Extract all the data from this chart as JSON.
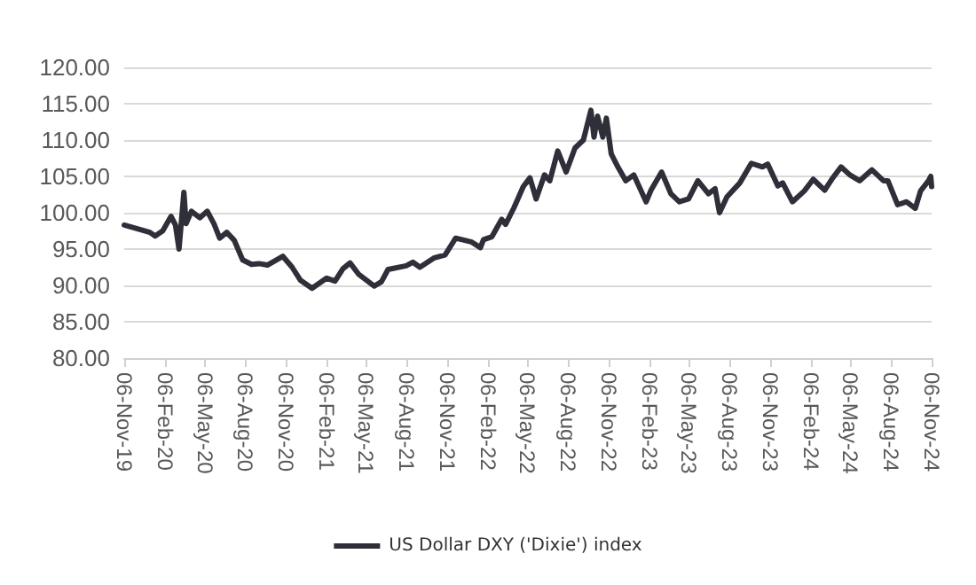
{
  "chart_data": {
    "type": "line",
    "x": [
      "2019-11-06",
      "2019-12-06",
      "2020-01-03",
      "2020-01-15",
      "2020-02-01",
      "2020-02-20",
      "2020-03-01",
      "2020-03-09",
      "2020-03-20",
      "2020-03-25",
      "2020-04-06",
      "2020-04-25",
      "2020-05-12",
      "2020-05-27",
      "2020-06-09",
      "2020-06-25",
      "2020-07-12",
      "2020-07-31",
      "2020-08-20",
      "2020-09-06",
      "2020-09-25",
      "2020-10-30",
      "2020-11-20",
      "2020-12-09",
      "2021-01-04",
      "2021-02-06",
      "2021-02-25",
      "2021-03-15",
      "2021-03-31",
      "2021-04-20",
      "2021-05-25",
      "2021-06-10",
      "2021-06-25",
      "2021-08-05",
      "2021-08-20",
      "2021-09-05",
      "2021-10-08",
      "2021-11-01",
      "2021-11-25",
      "2021-12-30",
      "2022-01-20",
      "2022-01-27",
      "2022-02-15",
      "2022-03-09",
      "2022-03-18",
      "2022-04-06",
      "2022-04-27",
      "2022-05-12",
      "2022-05-26",
      "2022-06-14",
      "2022-06-26",
      "2022-07-14",
      "2022-08-02",
      "2022-08-22",
      "2022-09-10",
      "2022-09-27",
      "2022-10-04",
      "2022-10-12",
      "2022-10-24",
      "2022-11-01",
      "2022-11-12",
      "2022-11-27",
      "2022-12-15",
      "2023-01-02",
      "2023-01-30",
      "2023-02-10",
      "2023-03-06",
      "2023-03-27",
      "2023-04-15",
      "2023-05-06",
      "2023-05-27",
      "2023-06-20",
      "2023-07-05",
      "2023-07-15",
      "2023-08-01",
      "2023-08-30",
      "2023-09-25",
      "2023-10-20",
      "2023-11-01",
      "2023-11-24",
      "2023-12-05",
      "2023-12-27",
      "2024-01-23",
      "2024-02-12",
      "2024-03-09",
      "2024-03-25",
      "2024-04-15",
      "2024-05-05",
      "2024-05-27",
      "2024-06-24",
      "2024-07-20",
      "2024-07-30",
      "2024-08-21",
      "2024-09-10",
      "2024-09-30",
      "2024-10-12",
      "2024-10-30",
      "2024-11-04",
      "2024-11-06"
    ],
    "series": [
      {
        "name": "US Dollar DXY ('Dixie') index",
        "color": "#2f2f3a",
        "values": [
          98.3,
          97.8,
          97.3,
          96.8,
          97.5,
          99.5,
          98.3,
          95.0,
          102.8,
          98.5,
          100.2,
          99.3,
          100.2,
          98.5,
          96.5,
          97.3,
          96.2,
          93.5,
          92.9,
          93.0,
          92.8,
          94.0,
          92.5,
          90.7,
          89.6,
          91.0,
          90.6,
          92.3,
          93.1,
          91.5,
          89.9,
          90.5,
          92.2,
          92.7,
          93.2,
          92.5,
          93.8,
          94.2,
          96.5,
          96.0,
          95.2,
          96.3,
          96.7,
          99.1,
          98.4,
          100.7,
          103.6,
          104.8,
          101.9,
          105.2,
          104.4,
          108.5,
          105.6,
          108.9,
          110.0,
          114.1,
          110.4,
          113.3,
          110.4,
          113.0,
          108.1,
          106.3,
          104.4,
          105.2,
          101.5,
          103.1,
          105.6,
          102.6,
          101.5,
          101.9,
          104.4,
          102.6,
          103.3,
          100.0,
          102.2,
          104.1,
          106.8,
          106.3,
          106.7,
          103.7,
          104.1,
          101.5,
          103.0,
          104.6,
          103.1,
          104.6,
          106.3,
          105.2,
          104.4,
          105.9,
          104.4,
          104.4,
          101.1,
          101.5,
          100.6,
          103.0,
          104.4,
          105.0,
          103.6
        ]
      }
    ],
    "xlim": [
      "2019-11-06",
      "2024-11-06"
    ],
    "xticks": [
      {
        "value": "2019-11-06",
        "label": "06-Nov-19"
      },
      {
        "value": "2020-02-06",
        "label": "06-Feb-20"
      },
      {
        "value": "2020-05-06",
        "label": "06-May-20"
      },
      {
        "value": "2020-08-06",
        "label": "06-Aug-20"
      },
      {
        "value": "2020-11-06",
        "label": "06-Nov-20"
      },
      {
        "value": "2021-02-06",
        "label": "06-Feb-21"
      },
      {
        "value": "2021-05-06",
        "label": "06-May-21"
      },
      {
        "value": "2021-08-06",
        "label": "06-Aug-21"
      },
      {
        "value": "2021-11-06",
        "label": "06-Nov-21"
      },
      {
        "value": "2022-02-06",
        "label": "06-Feb-22"
      },
      {
        "value": "2022-05-06",
        "label": "06-May-22"
      },
      {
        "value": "2022-08-06",
        "label": "06-Aug-22"
      },
      {
        "value": "2022-11-06",
        "label": "06-Nov-22"
      },
      {
        "value": "2023-02-06",
        "label": "06-Feb-23"
      },
      {
        "value": "2023-05-06",
        "label": "06-May-23"
      },
      {
        "value": "2023-08-06",
        "label": "06-Aug-23"
      },
      {
        "value": "2023-11-06",
        "label": "06-Nov-23"
      },
      {
        "value": "2024-02-06",
        "label": "06-Feb-24"
      },
      {
        "value": "2024-05-06",
        "label": "06-May-24"
      },
      {
        "value": "2024-08-06",
        "label": "06-Aug-24"
      },
      {
        "value": "2024-11-06",
        "label": "06-Nov-24"
      }
    ],
    "ylim": [
      80,
      120
    ],
    "yticks": [
      {
        "value": 80,
        "label": "80.00"
      },
      {
        "value": 85,
        "label": "85.00"
      },
      {
        "value": 90,
        "label": "90.00"
      },
      {
        "value": 95,
        "label": "95.00"
      },
      {
        "value": 100,
        "label": "100.00"
      },
      {
        "value": 105,
        "label": "105.00"
      },
      {
        "value": 110,
        "label": "110.00"
      },
      {
        "value": 115,
        "label": "115.00"
      },
      {
        "value": 120,
        "label": "120.00"
      }
    ],
    "grid": "y",
    "legend": "bottom",
    "marker": "none",
    "line_style": "solid"
  }
}
